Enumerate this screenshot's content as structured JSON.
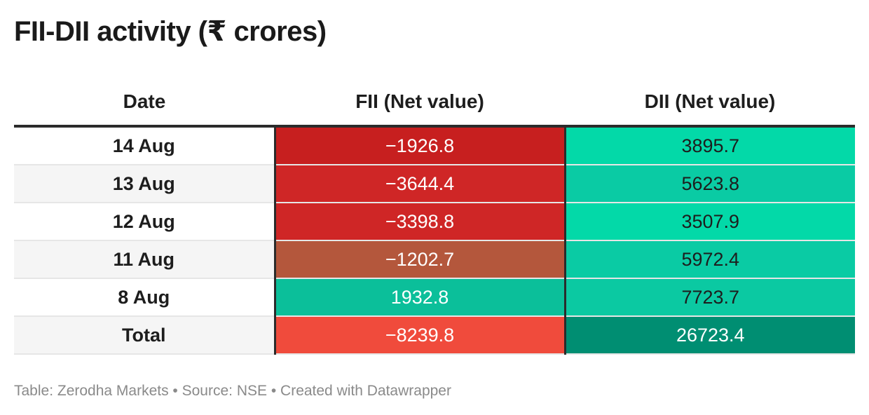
{
  "title": "FII-DII activity (₹ crores)",
  "headers": {
    "date": "Date",
    "fii": "FII (Net value)",
    "dii": "DII (Net value)"
  },
  "rows": [
    {
      "date": "14 Aug",
      "fii": "−1926.8",
      "dii": "3895.7"
    },
    {
      "date": "13 Aug",
      "fii": "−3644.4",
      "dii": "5623.8"
    },
    {
      "date": "12 Aug",
      "fii": "−3398.8",
      "dii": "3507.9"
    },
    {
      "date": "11 Aug",
      "fii": "−1202.7",
      "dii": "5972.4"
    },
    {
      "date": "8 Aug",
      "fii": "1932.8",
      "dii": "7723.7"
    },
    {
      "date": "Total",
      "fii": "−8239.8",
      "dii": "26723.4"
    }
  ],
  "cell_colors": {
    "fii": [
      "#c71f1f",
      "#cf2626",
      "#cf2626",
      "#b4573c",
      "#0bbf9a",
      "#f04b3c"
    ],
    "dii": [
      "#03d9a8",
      "#0acba4",
      "#03d9a8",
      "#0acba4",
      "#0bc9a2",
      "#008e72"
    ]
  },
  "text_colors": {
    "fii": [
      "#ffffff",
      "#ffffff",
      "#ffffff",
      "#ffffff",
      "#ffffff",
      "#ffffff"
    ],
    "dii": [
      "#1d1d1d",
      "#1d1d1d",
      "#1d1d1d",
      "#1d1d1d",
      "#1d1d1d",
      "#ffffff"
    ]
  },
  "footer": "Table: Zerodha Markets • Source: NSE • Created with Datawrapper",
  "chart_data": {
    "type": "table",
    "title": "FII-DII activity (₹ crores)",
    "columns": [
      "Date",
      "FII (Net value)",
      "DII (Net value)"
    ],
    "categories": [
      "14 Aug",
      "13 Aug",
      "12 Aug",
      "11 Aug",
      "8 Aug",
      "Total"
    ],
    "series": [
      {
        "name": "FII (Net value)",
        "values": [
          -1926.8,
          -3644.4,
          -3398.8,
          -1202.7,
          1932.8,
          -8239.8
        ]
      },
      {
        "name": "DII (Net value)",
        "values": [
          3895.7,
          5623.8,
          3507.9,
          5972.4,
          7723.7,
          26723.4
        ]
      }
    ]
  }
}
